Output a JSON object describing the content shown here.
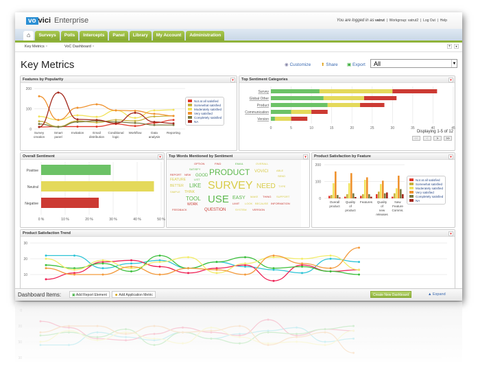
{
  "app": {
    "logo_vo": "vo",
    "logo_vici": "vici",
    "product": "Enterprise",
    "logged_in": "You are logged in as",
    "user": "vatrut",
    "workgroup": "Workgroup: vatrut2",
    "logout": "Log Out",
    "help": "Help"
  },
  "nav": {
    "tabs": [
      "Surveys",
      "Polls",
      "Intercepts",
      "Panel",
      "Library",
      "My Account",
      "Administration"
    ]
  },
  "subtabs": [
    "Key Metrics",
    "VoC Dashboard"
  ],
  "page": {
    "title": "Key Metrics",
    "customize": "Customize",
    "share": "Share",
    "export": "Export",
    "filter": "All"
  },
  "colors": {
    "not_at_all": "#e0392b",
    "somewhat": "#c9b23f",
    "moderately": "#f1e25a",
    "very": "#ef922e",
    "completely": "#7b7b41",
    "na": "#a3271b",
    "positive": "#6cc266",
    "neutral": "#e4d95a",
    "negative": "#cc3a33"
  },
  "panels": {
    "features": "Features by Popularity",
    "sentiment": "Top Sentiment Categories",
    "overall": "Overall Sentiment",
    "words": "Top Words Mentioned by Sentiment",
    "product": "Product Satisfaction by Feature",
    "trend": "Product Satisfaction Trend"
  },
  "pager": {
    "text": "Displaying 1-5 of 12",
    "first": "<<",
    "prev": "<",
    "next": ">",
    "last": ">>"
  },
  "footer": {
    "label": "Dashboard Items:",
    "add_report": "Add Report Element",
    "add_metric": "Add Application Metric",
    "create": "Create New Dashboard",
    "expand": "Expand"
  },
  "words": [
    {
      "t": "SURVEY",
      "s": "n"
    },
    {
      "t": "PRODUCT",
      "s": "p"
    },
    {
      "t": "USE",
      "s": "p"
    },
    {
      "t": "NEED",
      "s": "n"
    },
    {
      "t": "TOOL",
      "s": "p"
    },
    {
      "t": "LIKE",
      "s": "p"
    },
    {
      "t": "QUESTION",
      "s": "x"
    },
    {
      "t": "GOOD",
      "s": "p"
    },
    {
      "t": "VOVICI",
      "s": "n"
    },
    {
      "t": "EASY",
      "s": "p"
    },
    {
      "t": "FEATURE",
      "s": "n"
    },
    {
      "t": "BETTER",
      "s": "n"
    },
    {
      "t": "WORK",
      "s": "x"
    },
    {
      "t": "FEEDBACK",
      "s": "x"
    },
    {
      "t": "NEW",
      "s": "x"
    },
    {
      "t": "REPORT",
      "s": "x"
    },
    {
      "t": "OPTION",
      "s": "x"
    },
    {
      "t": "SATISFY",
      "s": "p"
    },
    {
      "t": "FIND",
      "s": "x"
    },
    {
      "t": "EMAIL",
      "s": "p"
    },
    {
      "t": "OVERALL",
      "s": "n"
    },
    {
      "t": "VERSION",
      "s": "x"
    },
    {
      "t": "SEND",
      "s": "n"
    },
    {
      "t": "TYPE",
      "s": "n"
    },
    {
      "t": "THING",
      "s": "x"
    },
    {
      "t": "SUPPORT",
      "s": "n"
    },
    {
      "t": "INFORMATION",
      "s": "x"
    },
    {
      "t": "BECAUSE",
      "s": "n"
    },
    {
      "t": "LOOK",
      "s": "n"
    },
    {
      "t": "LIMIT",
      "s": "x"
    },
    {
      "t": "SYSTEM",
      "s": "n"
    },
    {
      "t": "SIMPLE",
      "s": "n"
    },
    {
      "t": "LIST",
      "s": "p"
    },
    {
      "t": "ABLE",
      "s": "n"
    },
    {
      "t": "MAKE",
      "s": "n"
    },
    {
      "t": "THINK",
      "s": "n"
    }
  ],
  "chart_data": [
    {
      "id": "features",
      "type": "line",
      "title": "Features by Popularity",
      "ylim": [
        0,
        200
      ],
      "yticks": [
        0,
        100,
        200
      ],
      "categories": [
        "Survey creation",
        "Smart panel",
        "Invitation",
        "Email distribution",
        "Conditional logic",
        "Workflow",
        "Data analysis",
        "Reporting"
      ],
      "series": [
        {
          "name": "Not at all satisfied",
          "key": "not_at_all",
          "values": [
            10,
            12,
            12,
            12,
            25,
            15,
            30,
            45
          ]
        },
        {
          "name": "Somewhat satisfied",
          "key": "somewhat",
          "values": [
            38,
            12,
            40,
            32,
            45,
            40,
            62,
            65
          ]
        },
        {
          "name": "Moderately satisfied",
          "key": "moderately",
          "values": [
            62,
            45,
            68,
            60,
            92,
            55,
            92,
            95
          ]
        },
        {
          "name": "Very satisfied",
          "key": "very",
          "values": [
            162,
            45,
            105,
            122,
            92,
            90,
            75,
            65
          ]
        },
        {
          "name": "Completely satisfied",
          "key": "completely",
          "values": [
            25,
            10,
            35,
            40,
            35,
            30,
            20,
            20
          ]
        },
        {
          "name": "NA",
          "key": "na",
          "values": [
            10,
            180,
            48,
            45,
            28,
            80,
            35,
            28
          ]
        }
      ]
    },
    {
      "id": "sentiment",
      "type": "bar",
      "orientation": "horizontal",
      "stacked": true,
      "title": "Top Sentiment Categories",
      "xlim": [
        0,
        45
      ],
      "xticks": [
        0,
        5,
        10,
        15,
        20,
        25,
        30,
        35,
        40,
        45
      ],
      "categories": [
        "Survey",
        "Global Other",
        "Product",
        "Communication",
        "Version"
      ],
      "series": [
        {
          "name": "Positive",
          "key": "positive",
          "values": [
            12,
            13,
            14,
            5,
            1
          ]
        },
        {
          "name": "Neutral",
          "key": "neutral",
          "values": [
            18,
            10,
            8,
            5,
            4
          ]
        },
        {
          "name": "Negative",
          "key": "negative",
          "values": [
            11,
            8,
            6,
            4,
            4
          ]
        }
      ]
    },
    {
      "id": "overall",
      "type": "bar",
      "orientation": "horizontal",
      "title": "Overall Sentiment",
      "xlim": [
        0,
        50
      ],
      "xticks": [
        "0 %",
        "10 %",
        "20 %",
        "30 %",
        "40 %",
        "50 %"
      ],
      "categories": [
        "Positive",
        "Neutral",
        "Negative"
      ],
      "values": [
        29,
        47,
        24
      ],
      "keys": [
        "positive",
        "neutral",
        "negative"
      ]
    },
    {
      "id": "product",
      "type": "bar",
      "title": "Product Satisfaction by Feature",
      "ylim": [
        0,
        200
      ],
      "yticks": [
        0,
        100,
        200
      ],
      "categories": [
        [
          "Overall",
          "product"
        ],
        [
          "Quality",
          "of",
          "product"
        ],
        [
          "Features"
        ],
        [
          "Quality",
          "of",
          "new",
          "releases"
        ],
        [
          "New",
          "Feature",
          "Comms."
        ]
      ],
      "series": [
        {
          "name": "Not at all satisfied",
          "key": "not_at_all",
          "values": [
            15,
            10,
            15,
            25,
            10
          ]
        },
        {
          "name": "Somewhat satisfied",
          "key": "somewhat",
          "values": [
            20,
            25,
            25,
            40,
            30
          ]
        },
        {
          "name": "Moderately satisfied",
          "key": "moderately",
          "values": [
            90,
            90,
            110,
            85,
            60
          ]
        },
        {
          "name": "Very satisfied",
          "key": "very",
          "values": [
            160,
            150,
            125,
            105,
            135
          ]
        },
        {
          "name": "Completely satisfied",
          "key": "completely",
          "values": [
            20,
            30,
            25,
            30,
            55
          ]
        },
        {
          "name": "NA",
          "key": "na",
          "values": [
            5,
            8,
            10,
            35,
            25
          ]
        }
      ]
    },
    {
      "id": "trend",
      "type": "line",
      "title": "Product Satisfaction Trend",
      "ylim": [
        0,
        30
      ],
      "yticks": [
        0,
        10,
        20,
        30
      ],
      "series": [
        {
          "color": "#2ec4d6",
          "values": [
            22,
            22,
            14,
            17,
            19,
            14,
            18,
            15,
            13,
            11,
            20,
            18
          ]
        },
        {
          "color": "#ee2255",
          "values": [
            7,
            11,
            18,
            19,
            15,
            11,
            14,
            16,
            6,
            16,
            12,
            13
          ]
        },
        {
          "color": "#3cbf3c",
          "values": [
            16,
            14,
            17,
            12,
            22,
            14,
            18,
            21,
            14,
            15,
            12,
            10
          ]
        },
        {
          "color": "#f2ec6a",
          "values": [
            20,
            13,
            19,
            14,
            18,
            21,
            11,
            17,
            21,
            20,
            22,
            13
          ]
        },
        {
          "color": "#f39a3c",
          "values": [
            14,
            10,
            10,
            15,
            10,
            14,
            13,
            10,
            22,
            17,
            14,
            27
          ]
        }
      ]
    }
  ]
}
